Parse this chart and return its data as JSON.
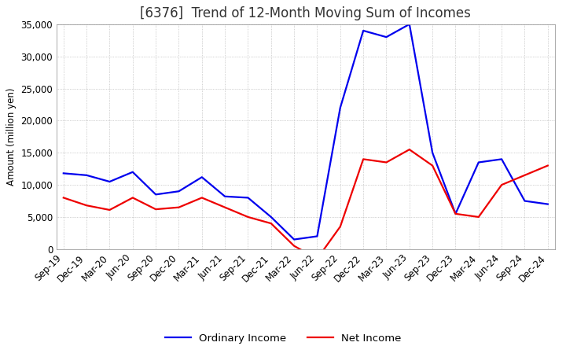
{
  "title": "[6376]  Trend of 12-Month Moving Sum of Incomes",
  "ylabel": "Amount (million yen)",
  "x_labels": [
    "Sep-19",
    "Dec-19",
    "Mar-20",
    "Jun-20",
    "Sep-20",
    "Dec-20",
    "Mar-21",
    "Jun-21",
    "Sep-21",
    "Dec-21",
    "Mar-22",
    "Jun-22",
    "Sep-22",
    "Dec-22",
    "Mar-23",
    "Jun-23",
    "Sep-23",
    "Dec-23",
    "Mar-24",
    "Jun-24",
    "Sep-24",
    "Dec-24"
  ],
  "ordinary_income": [
    11800,
    11500,
    10500,
    12000,
    8500,
    9000,
    11200,
    8200,
    8000,
    5000,
    1500,
    2000,
    22000,
    34000,
    33000,
    35000,
    15000,
    5500,
    13500,
    14000,
    7500,
    7000
  ],
  "net_income": [
    8000,
    6800,
    6100,
    8000,
    6200,
    6500,
    8000,
    6500,
    5000,
    4000,
    500,
    -1500,
    3500,
    14000,
    13500,
    15500,
    13000,
    5500,
    5000,
    10000,
    11500,
    13000
  ],
  "ordinary_color": "#0000ee",
  "net_color": "#ee0000",
  "ylim": [
    0,
    35000
  ],
  "yticks": [
    0,
    5000,
    10000,
    15000,
    20000,
    25000,
    30000,
    35000
  ],
  "background_color": "#ffffff",
  "grid_color": "#aaaaaa",
  "title_fontsize": 12,
  "axis_fontsize": 8.5,
  "legend_fontsize": 9.5
}
